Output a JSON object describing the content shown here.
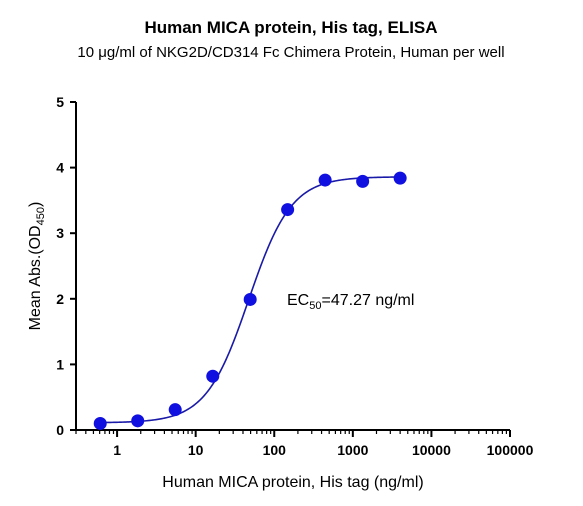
{
  "chart_data": {
    "type": "scatter",
    "title": "Human MICA protein, His tag, ELISA",
    "subtitle": "10 μg/ml of NKG2D/CD314 Fc Chimera Protein, Human per well",
    "xlabel": "Human MICA protein, His tag (ng/ml)",
    "ylabel_main": "Mean Abs.(OD",
    "ylabel_sub": "450",
    "ylabel_end": ")",
    "x_scale": "log",
    "xlim": [
      0.3,
      100000
    ],
    "ylim": [
      0,
      5
    ],
    "x_ticks": [
      1,
      10,
      100,
      1000,
      10000,
      100000
    ],
    "x_tick_labels": [
      "1",
      "10",
      "100",
      "1000",
      "10000",
      "100000"
    ],
    "y_ticks": [
      0,
      1,
      2,
      3,
      4,
      5
    ],
    "y_tick_labels": [
      "0",
      "1",
      "2",
      "3",
      "4",
      "5"
    ],
    "grid": false,
    "series": [
      {
        "x": [
          0.61,
          1.83,
          5.49,
          16.5,
          49.4,
          148,
          444,
          1333,
          4000
        ],
        "y": [
          0.1,
          0.14,
          0.31,
          0.82,
          1.99,
          3.36,
          3.81,
          3.79,
          3.84
        ],
        "color": "#1010e0"
      }
    ],
    "fit_curve": {
      "model": "4PL",
      "bottom": 0.11,
      "top": 3.86,
      "ec50": 47.27,
      "hill": 1.6,
      "color": "#1a1aa8"
    },
    "annotation": {
      "main": "EC",
      "sub": "50",
      "rest": "=47.27 ng/ml"
    }
  }
}
